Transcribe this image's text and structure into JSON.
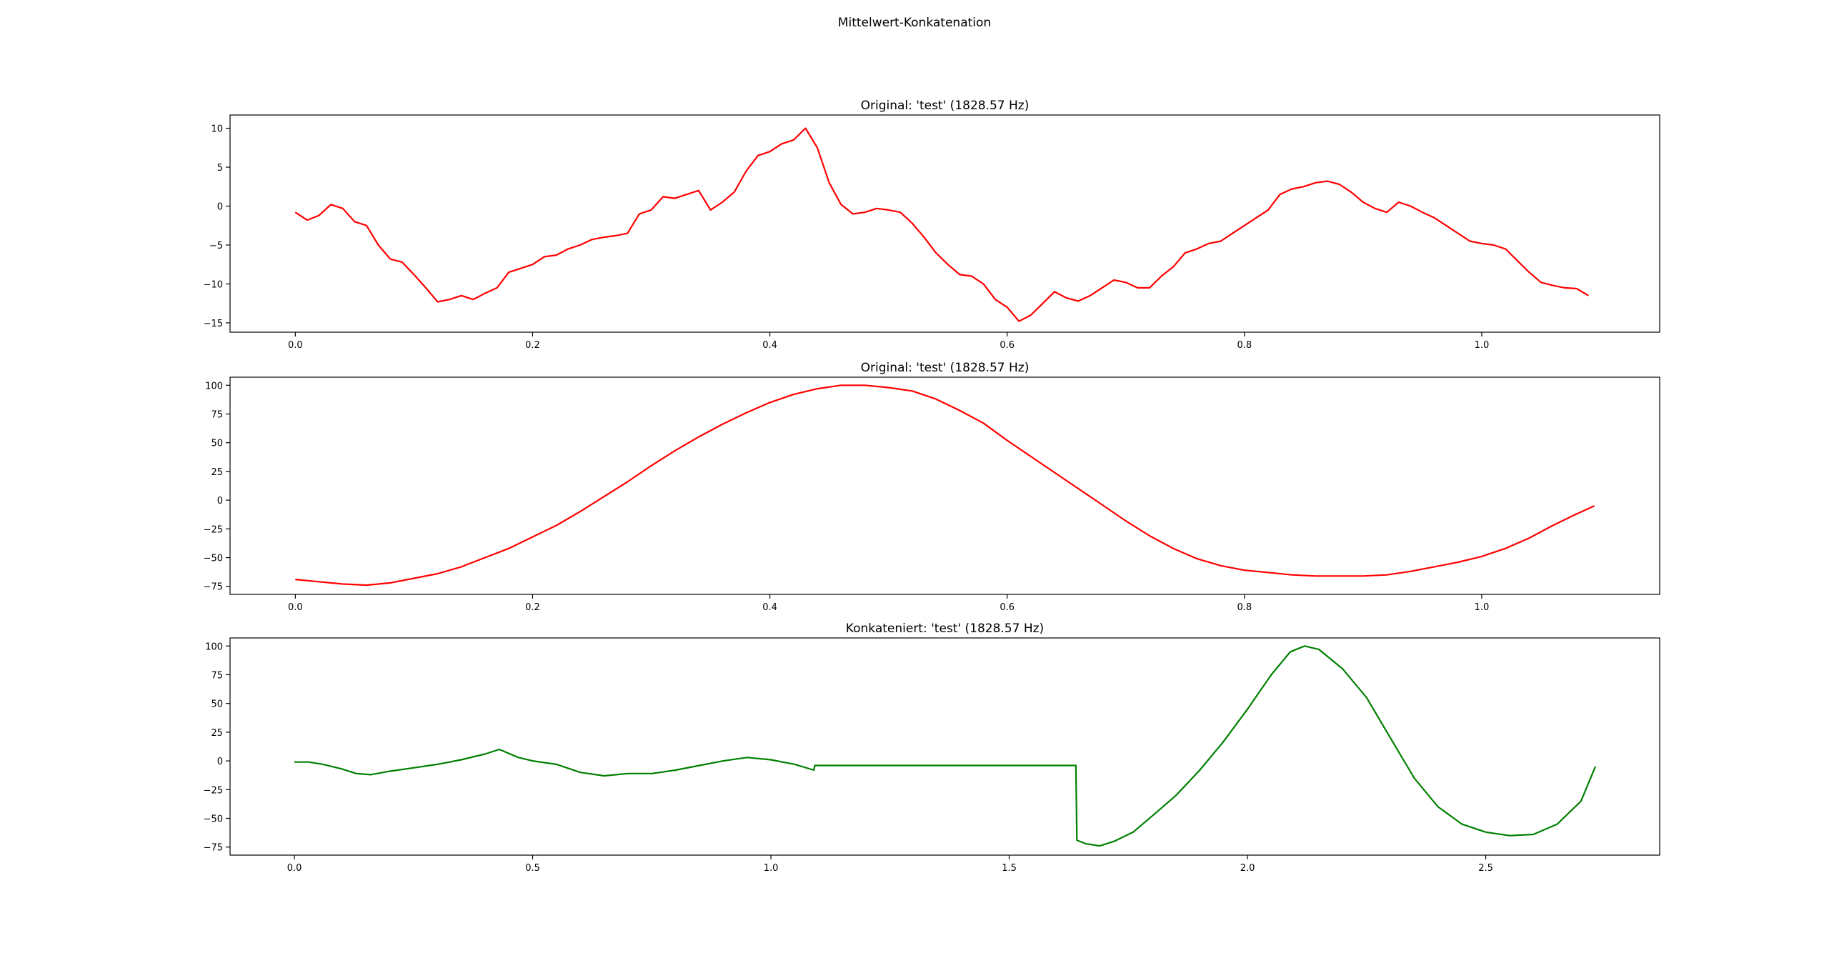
{
  "figure": {
    "suptitle": "Mittelwert-Konkatenation"
  },
  "colors": {
    "red": "#ff0000",
    "green": "#008000",
    "axes": "#000000",
    "background": "#ffffff"
  },
  "chart_data": [
    {
      "type": "line",
      "title": "Original: 'test' (1828.57 Hz)",
      "xlabel": "",
      "ylabel": "",
      "xlim": [
        -0.055,
        1.15
      ],
      "ylim": [
        -16.2,
        11.7
      ],
      "xticks": [
        0.0,
        0.2,
        0.4,
        0.6,
        0.8,
        1.0
      ],
      "xtick_labels": [
        "0.0",
        "0.2",
        "0.4",
        "0.6",
        "0.8",
        "1.0"
      ],
      "yticks": [
        10,
        5,
        0,
        -5,
        -10,
        -15
      ],
      "ytick_labels": [
        "10",
        "5",
        "0",
        "−5",
        "−10",
        "−15"
      ],
      "grid": false,
      "series": [
        {
          "color": "#ff0000",
          "x": [
            0.0,
            0.01,
            0.02,
            0.03,
            0.04,
            0.05,
            0.06,
            0.07,
            0.08,
            0.09,
            0.1,
            0.11,
            0.12,
            0.13,
            0.14,
            0.15,
            0.16,
            0.17,
            0.18,
            0.19,
            0.2,
            0.21,
            0.22,
            0.23,
            0.24,
            0.25,
            0.26,
            0.27,
            0.28,
            0.29,
            0.3,
            0.31,
            0.32,
            0.33,
            0.34,
            0.35,
            0.36,
            0.37,
            0.38,
            0.39,
            0.4,
            0.41,
            0.42,
            0.43,
            0.44,
            0.45,
            0.46,
            0.47,
            0.48,
            0.49,
            0.5,
            0.51,
            0.52,
            0.53,
            0.54,
            0.55,
            0.56,
            0.57,
            0.58,
            0.59,
            0.6,
            0.61,
            0.62,
            0.63,
            0.64,
            0.65,
            0.66,
            0.67,
            0.68,
            0.69,
            0.7,
            0.71,
            0.72,
            0.73,
            0.74,
            0.75,
            0.76,
            0.77,
            0.78,
            0.79,
            0.8,
            0.81,
            0.82,
            0.83,
            0.84,
            0.85,
            0.86,
            0.87,
            0.88,
            0.89,
            0.9,
            0.91,
            0.92,
            0.93,
            0.94,
            0.95,
            0.96,
            0.97,
            0.98,
            0.99,
            1.0,
            1.01,
            1.02,
            1.03,
            1.04,
            1.05,
            1.06,
            1.07,
            1.08,
            1.09
          ],
          "y": [
            -0.8,
            -1.8,
            -1.2,
            0.2,
            -0.3,
            -2.0,
            -2.5,
            -5.0,
            -6.8,
            -7.2,
            -8.8,
            -10.5,
            -12.3,
            -12.0,
            -11.5,
            -12.0,
            -11.2,
            -10.5,
            -8.5,
            -8.0,
            -7.5,
            -6.5,
            -6.3,
            -5.5,
            -5.0,
            -4.3,
            -4.0,
            -3.8,
            -3.5,
            -1.0,
            -0.5,
            1.2,
            1.0,
            1.5,
            2.0,
            -0.5,
            0.5,
            1.8,
            4.5,
            6.5,
            7.0,
            8.0,
            8.5,
            10.0,
            7.5,
            3.0,
            0.2,
            -1.0,
            -0.8,
            -0.3,
            -0.5,
            -0.8,
            -2.2,
            -4.0,
            -6.0,
            -7.5,
            -8.8,
            -9.0,
            -10.0,
            -12.0,
            -13.0,
            -14.8,
            -14.0,
            -12.5,
            -11.0,
            -11.8,
            -12.2,
            -11.5,
            -10.5,
            -9.5,
            -9.8,
            -10.5,
            -10.5,
            -9.0,
            -7.8,
            -6.0,
            -5.5,
            -4.8,
            -4.5,
            -3.5,
            -2.5,
            -1.5,
            -0.5,
            1.5,
            2.2,
            2.5,
            3.0,
            3.2,
            2.8,
            1.8,
            0.5,
            -0.3,
            -0.8,
            0.5,
            0.0,
            -0.8,
            -1.5,
            -2.5,
            -3.5,
            -4.5,
            -4.8,
            -5.0,
            -5.5,
            -7.0,
            -8.5,
            -9.8,
            -10.2,
            -10.5,
            -10.6,
            -11.5
          ]
        }
      ]
    },
    {
      "type": "line",
      "title": "Original: 'test' (1828.57 Hz)",
      "xlabel": "",
      "ylabel": "",
      "xlim": [
        -0.055,
        1.15
      ],
      "ylim": [
        -82,
        107
      ],
      "xticks": [
        0.0,
        0.2,
        0.4,
        0.6,
        0.8,
        1.0
      ],
      "xtick_labels": [
        "0.0",
        "0.2",
        "0.4",
        "0.6",
        "0.8",
        "1.0"
      ],
      "yticks": [
        100,
        75,
        50,
        25,
        0,
        -25,
        -50,
        -75
      ],
      "ytick_labels": [
        "100",
        "75",
        "50",
        "25",
        "0",
        "−25",
        "−50",
        "−75"
      ],
      "grid": false,
      "series": [
        {
          "color": "#ff0000",
          "x": [
            0.0,
            0.02,
            0.04,
            0.06,
            0.08,
            0.1,
            0.12,
            0.14,
            0.16,
            0.18,
            0.2,
            0.22,
            0.24,
            0.26,
            0.28,
            0.3,
            0.32,
            0.34,
            0.36,
            0.38,
            0.4,
            0.42,
            0.44,
            0.46,
            0.48,
            0.5,
            0.52,
            0.54,
            0.56,
            0.58,
            0.6,
            0.62,
            0.64,
            0.66,
            0.68,
            0.7,
            0.72,
            0.74,
            0.76,
            0.78,
            0.8,
            0.82,
            0.84,
            0.86,
            0.88,
            0.9,
            0.92,
            0.94,
            0.96,
            0.98,
            1.0,
            1.02,
            1.04,
            1.06,
            1.08,
            1.095
          ],
          "y": [
            -69,
            -71,
            -73,
            -74,
            -72,
            -68,
            -64,
            -58,
            -50,
            -42,
            -32,
            -22,
            -10,
            3,
            16,
            30,
            43,
            55,
            66,
            76,
            85,
            92,
            97,
            100,
            100,
            98,
            95,
            88,
            78,
            67,
            52,
            38,
            24,
            10,
            -4,
            -18,
            -31,
            -42,
            -51,
            -57,
            -61,
            -63,
            -65,
            -66,
            -66,
            -66,
            -65,
            -62,
            -58,
            -54,
            -49,
            -42,
            -33,
            -22,
            -12,
            -5
          ]
        }
      ]
    },
    {
      "type": "line",
      "title": "Konkateniert: 'test' (1828.57 Hz)",
      "xlabel": "",
      "ylabel": "",
      "xlim": [
        -0.135,
        2.865
      ],
      "ylim": [
        -82,
        107
      ],
      "xticks": [
        0.0,
        0.5,
        1.0,
        1.5,
        2.0,
        2.5
      ],
      "xtick_labels": [
        "0.0",
        "0.5",
        "1.0",
        "1.5",
        "2.0",
        "2.5"
      ],
      "yticks": [
        100,
        75,
        50,
        25,
        0,
        -25,
        -50,
        -75
      ],
      "ytick_labels": [
        "100",
        "75",
        "50",
        "25",
        "0",
        "−25",
        "−50",
        "−75"
      ],
      "grid": false,
      "series": [
        {
          "color": "#008000",
          "x": [
            0.0,
            0.03,
            0.06,
            0.1,
            0.13,
            0.16,
            0.2,
            0.25,
            0.3,
            0.35,
            0.4,
            0.43,
            0.47,
            0.5,
            0.55,
            0.6,
            0.65,
            0.7,
            0.75,
            0.8,
            0.85,
            0.9,
            0.95,
            1.0,
            1.05,
            1.09,
            1.092,
            1.64,
            1.642,
            1.66,
            1.69,
            1.72,
            1.76,
            1.8,
            1.85,
            1.9,
            1.95,
            2.0,
            2.05,
            2.09,
            2.12,
            2.15,
            2.2,
            2.25,
            2.3,
            2.35,
            2.4,
            2.45,
            2.5,
            2.55,
            2.6,
            2.65,
            2.7,
            2.73
          ],
          "y": [
            -1,
            -1,
            -3,
            -7,
            -11,
            -12,
            -9,
            -6,
            -3,
            1,
            6,
            10,
            3,
            0,
            -3,
            -10,
            -13,
            -11,
            -11,
            -8,
            -4,
            0,
            3,
            1,
            -3,
            -8,
            -4,
            -4,
            -69,
            -72,
            -74,
            -70,
            -62,
            -48,
            -30,
            -8,
            17,
            45,
            75,
            95,
            100,
            97,
            80,
            55,
            20,
            -15,
            -40,
            -55,
            -62,
            -65,
            -64,
            -55,
            -35,
            -5
          ]
        }
      ]
    }
  ]
}
